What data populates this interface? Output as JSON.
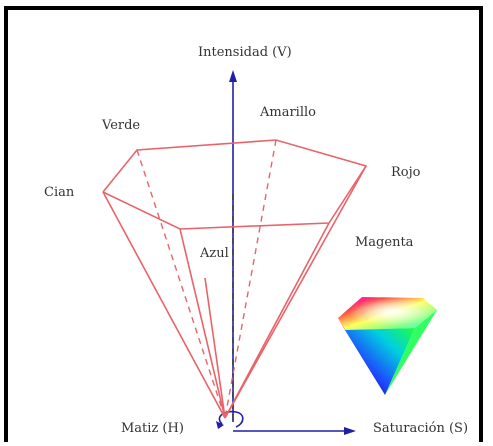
{
  "labels": {
    "intensity": "Intensidad (V)",
    "yellow": "Amarillo",
    "green": "Verde",
    "red": "Rojo",
    "cyan": "Cian",
    "magenta": "Magenta",
    "blue": "Azul",
    "hue": "Matiz (H)",
    "saturation": "Saturación (S)"
  },
  "colors": {
    "edge": "#e8646a",
    "axis": "#1f1fa8",
    "dashed_axis": "#333333"
  }
}
